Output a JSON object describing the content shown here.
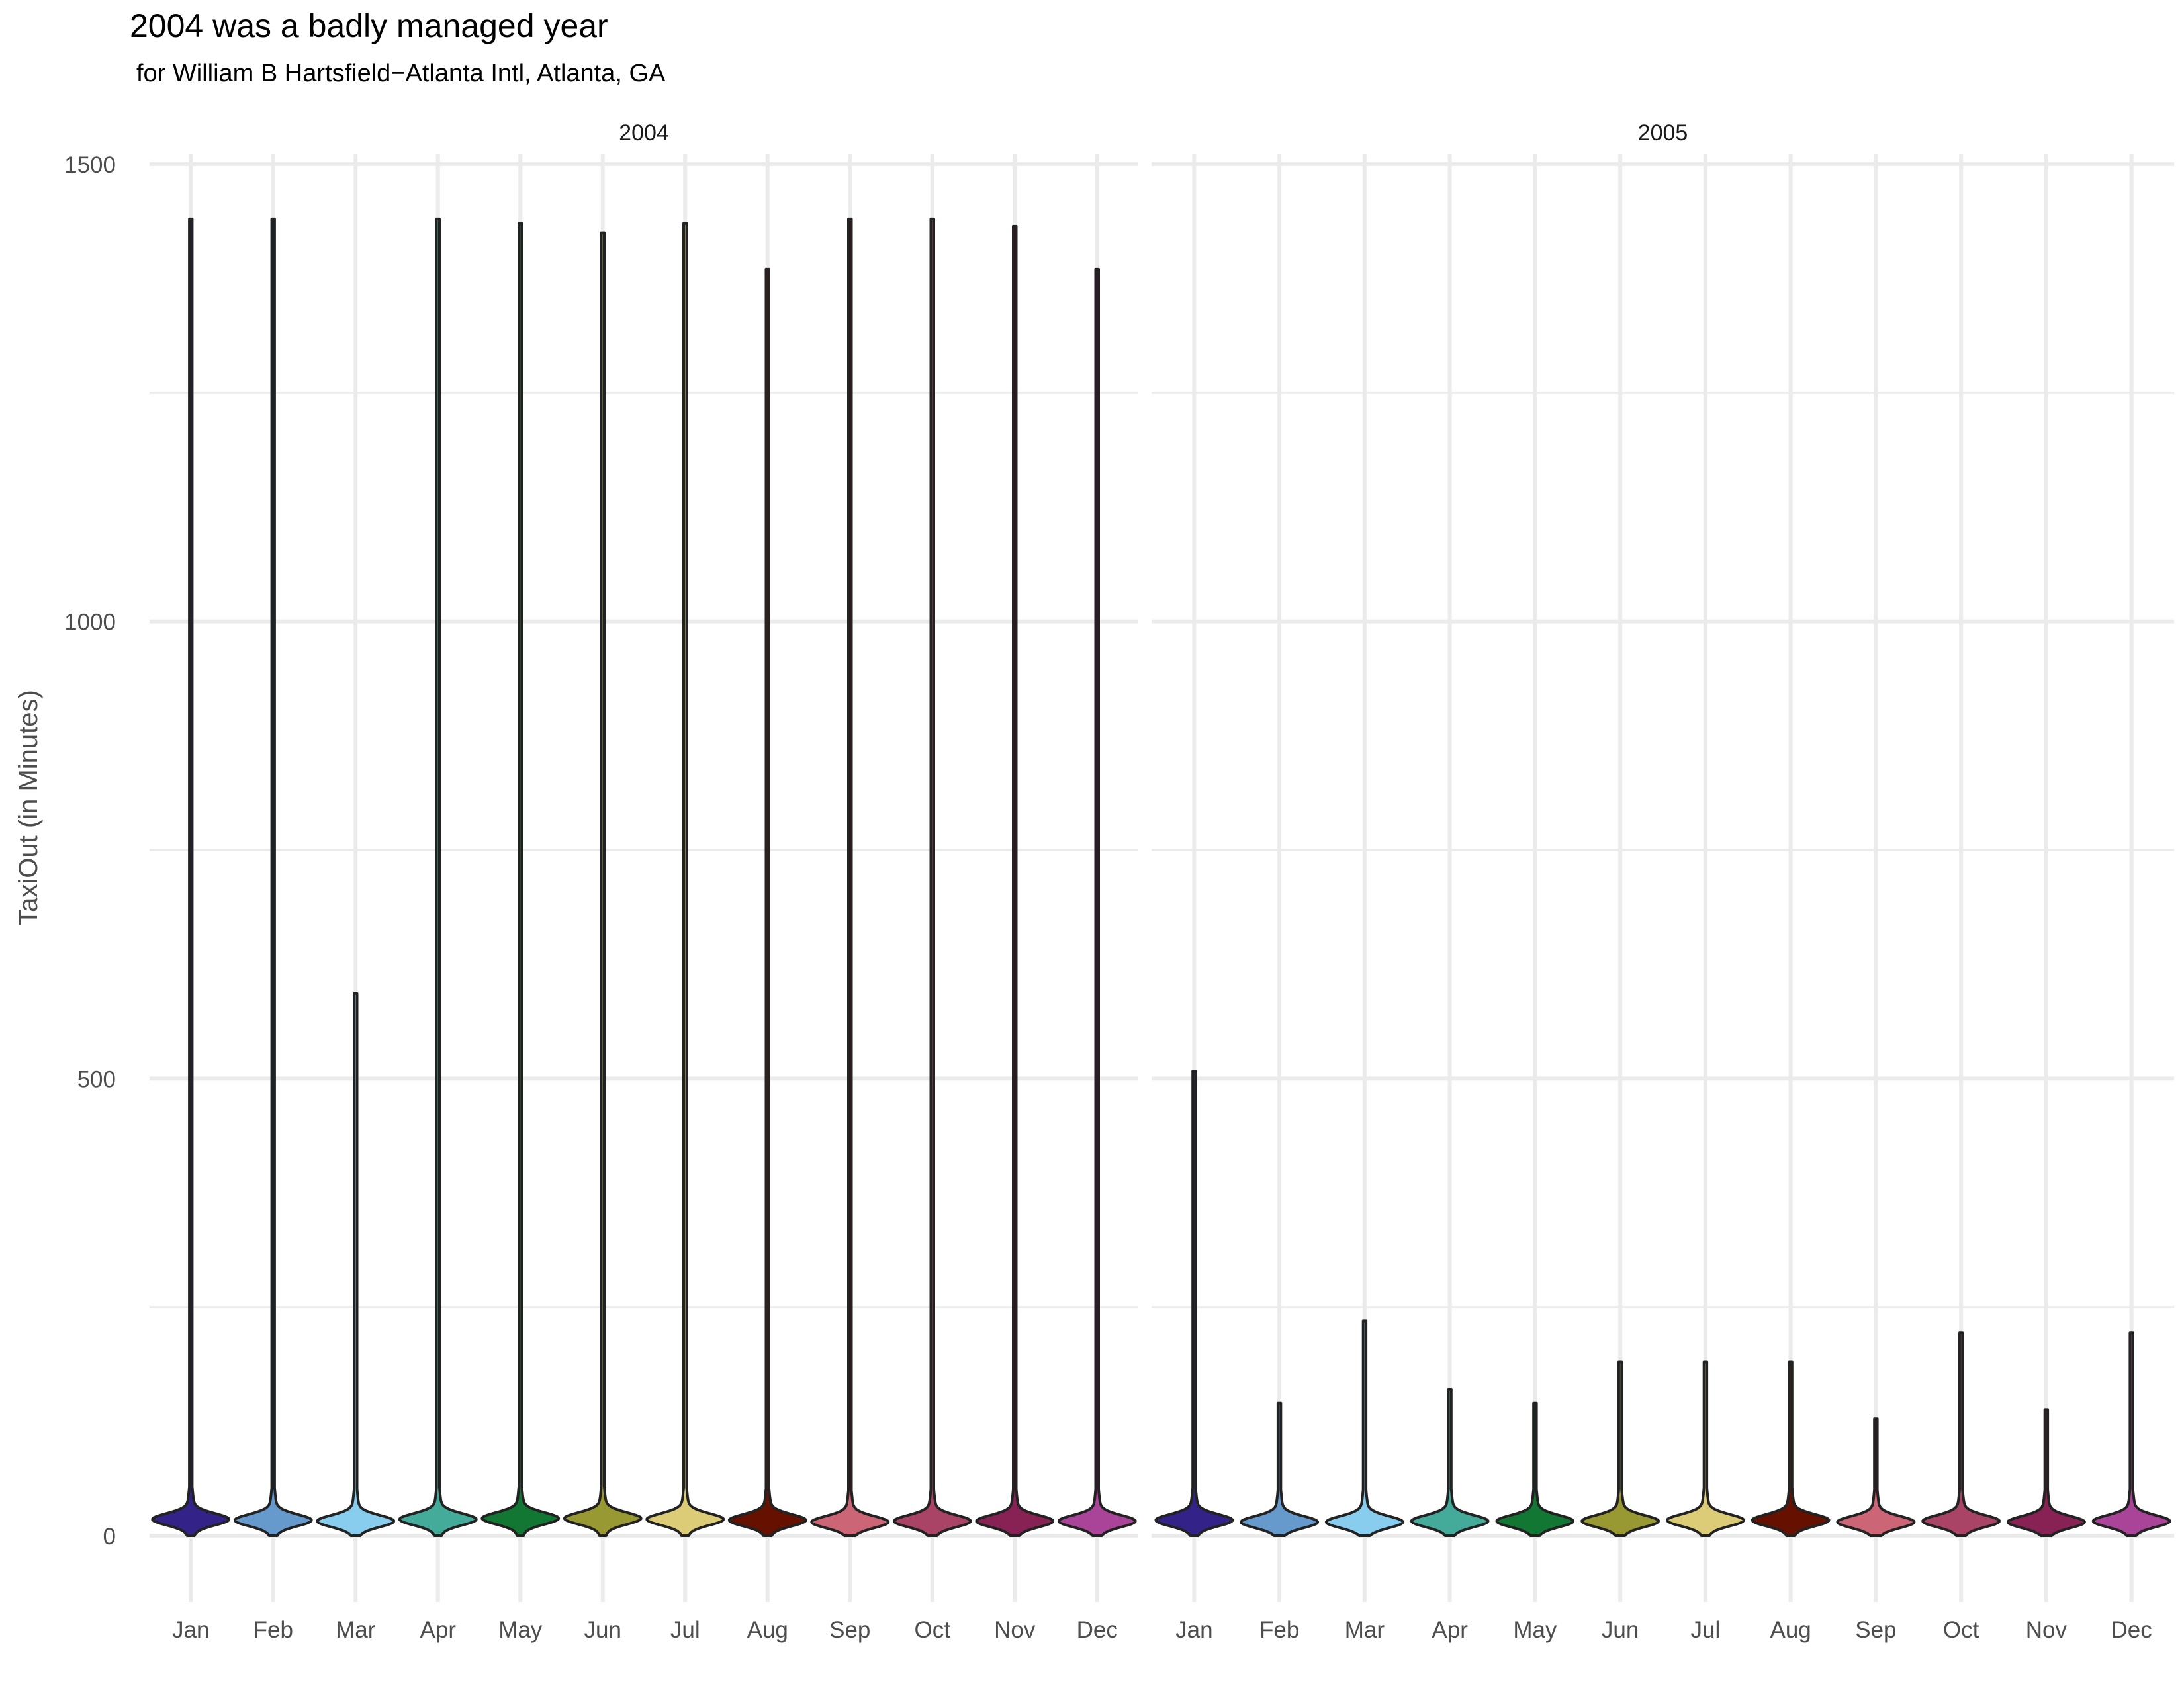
{
  "chart_data": {
    "type": "violin",
    "title": "2004 was a badly managed year",
    "subtitle": "for William B Hartsfield−Atlanta Intl, Atlanta, GA",
    "xlabel": "",
    "ylabel": "TaxiOut (in Minutes)",
    "ylim": [
      -70,
      1520
    ],
    "yticks": [
      0,
      500,
      1000,
      1500
    ],
    "grid": true,
    "legend": "none",
    "categories": [
      "Jan",
      "Feb",
      "Mar",
      "Apr",
      "May",
      "Jun",
      "Jul",
      "Aug",
      "Sep",
      "Oct",
      "Nov",
      "Dec"
    ],
    "colors": [
      "#332288",
      "#6699CC",
      "#88CCEE",
      "#44AA99",
      "#117733",
      "#999933",
      "#DDCC77",
      "#661100",
      "#CC6677",
      "#AA4466",
      "#882255",
      "#AA4499"
    ],
    "panels": [
      {
        "label": "2004",
        "series": [
          {
            "month": "Jan",
            "max": 1440,
            "median": 18
          },
          {
            "month": "Feb",
            "max": 1440,
            "median": 17
          },
          {
            "month": "Mar",
            "max": 593,
            "median": 16
          },
          {
            "month": "Apr",
            "max": 1440,
            "median": 18
          },
          {
            "month": "May",
            "max": 1435,
            "median": 19
          },
          {
            "month": "Jun",
            "max": 1425,
            "median": 19
          },
          {
            "month": "Jul",
            "max": 1435,
            "median": 18
          },
          {
            "month": "Aug",
            "max": 1385,
            "median": 17
          },
          {
            "month": "Sep",
            "max": 1440,
            "median": 15
          },
          {
            "month": "Oct",
            "max": 1440,
            "median": 16
          },
          {
            "month": "Nov",
            "max": 1432,
            "median": 16
          },
          {
            "month": "Dec",
            "max": 1385,
            "median": 16
          }
        ]
      },
      {
        "label": "2005",
        "series": [
          {
            "month": "Jan",
            "max": 508,
            "median": 17
          },
          {
            "month": "Feb",
            "max": 145,
            "median": 15
          },
          {
            "month": "Mar",
            "max": 235,
            "median": 15
          },
          {
            "month": "Apr",
            "max": 160,
            "median": 16
          },
          {
            "month": "May",
            "max": 145,
            "median": 16
          },
          {
            "month": "Jun",
            "max": 190,
            "median": 16
          },
          {
            "month": "Jul",
            "max": 190,
            "median": 17
          },
          {
            "month": "Aug",
            "max": 190,
            "median": 17
          },
          {
            "month": "Sep",
            "max": 128,
            "median": 15
          },
          {
            "month": "Oct",
            "max": 222,
            "median": 16
          },
          {
            "month": "Nov",
            "max": 138,
            "median": 15
          },
          {
            "month": "Dec",
            "max": 222,
            "median": 16
          }
        ]
      }
    ]
  }
}
